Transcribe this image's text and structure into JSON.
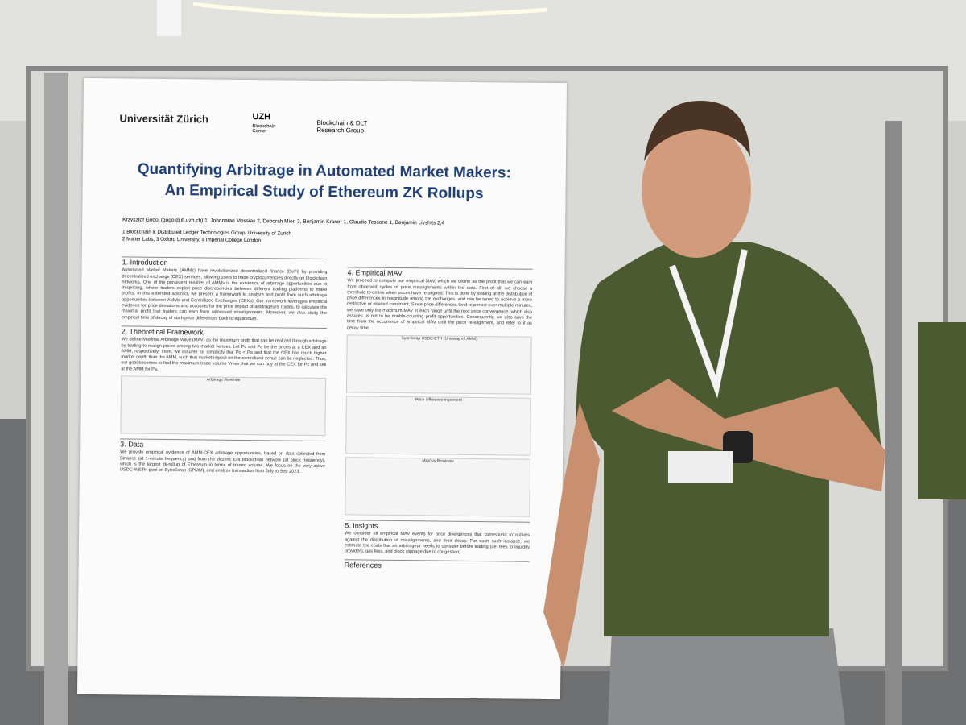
{
  "poster": {
    "logos": {
      "university": "Universität Zürich",
      "uzh": "UZH",
      "center": "Blockchain Center",
      "group": "Blockchain & DLT Research Group"
    },
    "title_lines": [
      "Quantifying Arbitrage in Automated Market Makers:",
      "An Empirical Study of Ethereum ZK Rollups"
    ],
    "authors": "Krzysztof Gogol (gogol@ifi.uzh.ch) 1, Johnnatan Messias 2, Deborah Miori 3, Benjamin Kraner 1, Claudio Tessone 1, Benjamin Livshits 2,4",
    "affiliations": [
      "1 Blockchain & Distributed Ledger Technologies Group, University of Zurich",
      "2 Matter Labs, 3 Oxford University, 4 Imperial College London"
    ],
    "left_sections": [
      {
        "heading": "1. Introduction",
        "text": "Automated Market Makers (AMMs) have revolutionized decentralized finance (DeFi) by providing decentralized exchange (DEX) services, allowing users to trade cryptocurrencies directly on blockchain networks. One of the persistent realities of AMMs is the existence of arbitrage opportunities due to mispricing, where traders exploit price discrepancies between different trading platforms to make profits. In this extended abstract, we present a framework to analyze and profit from such arbitrage opportunities between AMMs and Centralized Exchanges (CEXs). Our framework leverages empirical evidence for price deviations and accounts for the price impact of arbitrageurs' trades, to calculate the maximal profit that traders can earn from witnessed misalignments. Moreover, we also study the empirical time of decay of such price differences back to equilibrium."
      },
      {
        "heading": "2. Theoretical Framework",
        "text": "We define Maximal Arbitrage Value (MAV) as the maximum profit that can be realized through arbitrage by trading to realign prices among two market venues. Let Pc and Pa be the prices at a CEX and an AMM, respectively. Then, we assume for simplicity that Pc < Pa and that the CEX has much higher market depth than the AMM, such that market impact on the centralized venue can be neglected. Thus, our goal becomes to find the maximum trade volume Vmax that we can buy at the CEX for Pc and sell at the AMM for Pa."
      },
      {
        "heading": "3. Data",
        "text": "We provide empirical evidence of AMM-CEX arbitrage opportunities, based on data collected from Binance (at 1-minute frequency) and from the zkSync Era blockchain network (at block frequency), which is the largest zk-rollup of Ethereum in terms of traded volume. We focus on the very active USDC-WETH pool on SyncSwap (CPMM), and analyze transaction from July to Sep 2023."
      }
    ],
    "right_sections": [
      {
        "heading": "4. Empirical MAV",
        "text": "We proceed to compute our empirical MAV, which we define as the profit that we can earn from observed cycles of price misalignments within the data. First of all, we choose a threshold to define when prices have re-aligned. This is done by looking at the distribution of price differences in magnitude among the exchanges, and can be tuned to achieve a more restrictive or relaxed constraint. Since price differences tend to persist over multiple minutes, we save only the maximum MAV in each range until the next price convergence, which also assures us not to be double-counting profit opportunities. Consequently, we also save the time from the occurrence of empirical MAV until the price re-alignment, and refer to it as decay time."
      },
      {
        "heading": "5. Insights",
        "text": "We consider all empirical MAV events for price divergences that correspond to outliers against the distribution of misalignments, and their decay. For each such instance, we estimate the costs that an arbitrageur needs to consider before trading (i.e. fees to liquidity providers, gas fees, and block slippage due to congestion)."
      },
      {
        "heading": "References",
        "text": ""
      }
    ],
    "figures": {
      "arbitrage": "Arbitrage Revenue",
      "syncswap": "SyncSwap USDC-ETH (Uniswap v2 AMM)",
      "price_diff": "Price difference in percent",
      "mav": "MAV vs Reserves"
    }
  }
}
